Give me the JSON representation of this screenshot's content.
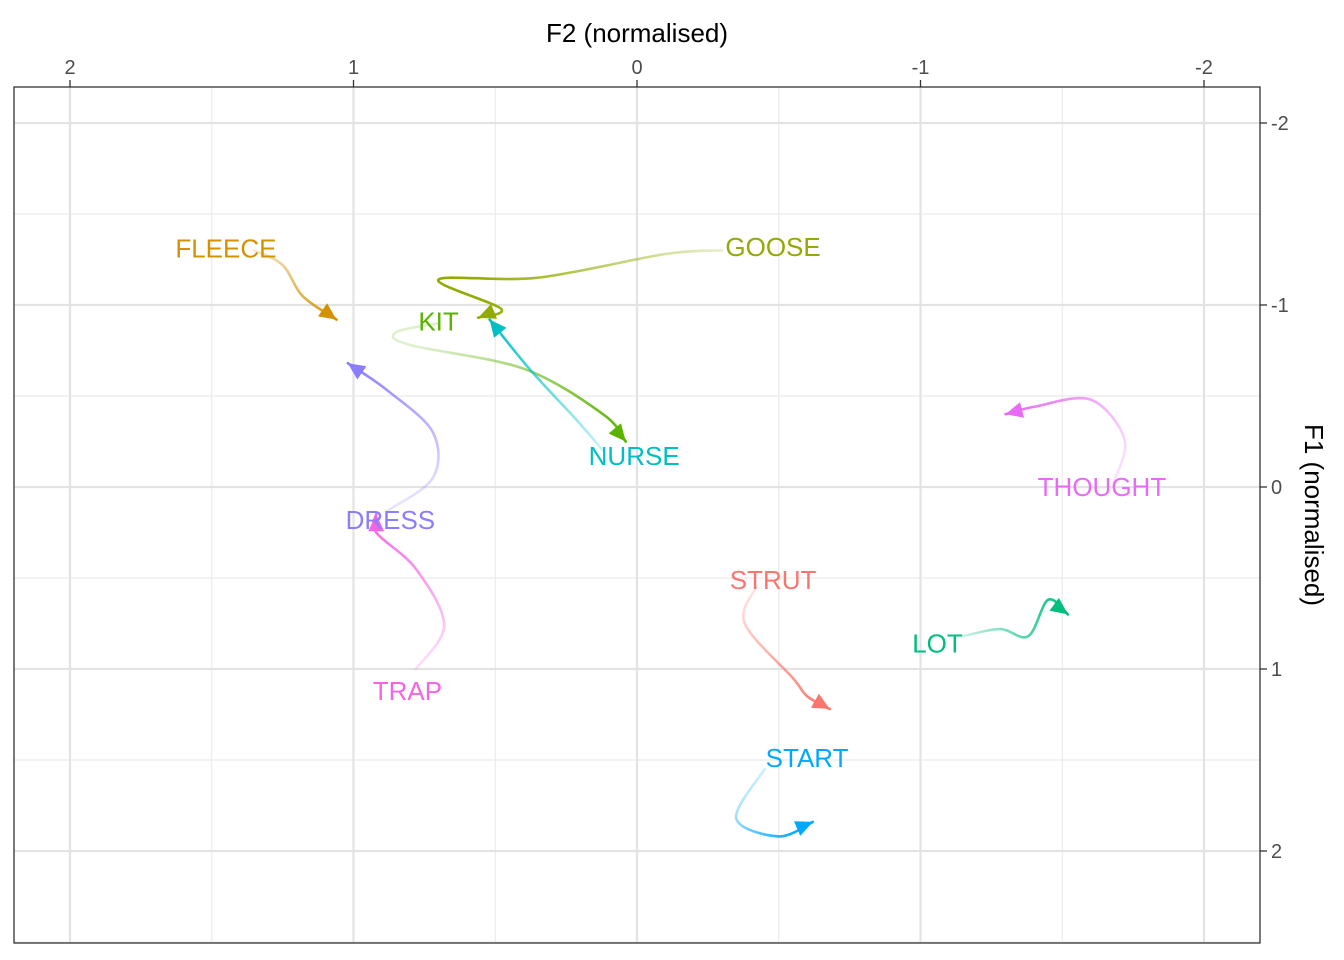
{
  "chart_data": {
    "type": "line",
    "xlabel": "F2 (normalised)",
    "ylabel": "F1 (normalised)",
    "x_axis_position": "top",
    "y_axis_position": "right",
    "x_reversed": true,
    "y_reversed": true,
    "xlim": [
      2.2,
      -2.2
    ],
    "ylim": [
      -2.2,
      2.5
    ],
    "x_ticks": [
      2,
      1,
      0,
      -1,
      -2
    ],
    "x_tick_labels": [
      "2",
      "1",
      "0",
      "-1",
      "-2"
    ],
    "y_ticks": [
      -2,
      -1,
      0,
      1,
      2
    ],
    "y_tick_labels": [
      "-2",
      "-1",
      "0",
      "1",
      "2"
    ],
    "grid": true,
    "legend": "none",
    "series": [
      {
        "name": "FLEECE",
        "color": "#D39200",
        "label_at": [
          1.45,
          -1.31
        ],
        "points": [
          [
            1.35,
            -1.3
          ],
          [
            1.25,
            -1.22
          ],
          [
            1.18,
            -1.05
          ],
          [
            1.06,
            -0.92
          ]
        ]
      },
      {
        "name": "GOOSE",
        "color": "#93AA00",
        "label_at": [
          -0.48,
          -1.32
        ],
        "points": [
          [
            -0.3,
            -1.3
          ],
          [
            -0.1,
            -1.28
          ],
          [
            0.35,
            -1.15
          ],
          [
            0.7,
            -1.14
          ],
          [
            0.48,
            -0.98
          ],
          [
            0.56,
            -0.93
          ]
        ]
      },
      {
        "name": "KIT",
        "color": "#5BB300",
        "label_at": [
          0.7,
          -0.91
        ],
        "points": [
          [
            0.7,
            -0.9
          ],
          [
            0.85,
            -0.85
          ],
          [
            0.8,
            -0.78
          ],
          [
            0.4,
            -0.65
          ],
          [
            0.12,
            -0.4
          ],
          [
            0.04,
            -0.25
          ]
        ]
      },
      {
        "name": "NURSE",
        "color": "#00BFC4",
        "label_at": [
          0.01,
          -0.17
        ],
        "points": [
          [
            0.12,
            -0.2
          ],
          [
            0.22,
            -0.38
          ],
          [
            0.38,
            -0.65
          ],
          [
            0.52,
            -0.92
          ]
        ]
      },
      {
        "name": "DRESS",
        "color": "#8A7EFF",
        "label_at": [
          0.87,
          0.18
        ],
        "points": [
          [
            0.88,
            0.13
          ],
          [
            0.72,
            -0.05
          ],
          [
            0.72,
            -0.3
          ],
          [
            0.88,
            -0.53
          ],
          [
            1.02,
            -0.68
          ]
        ]
      },
      {
        "name": "TRAP",
        "color": "#F564E3",
        "label_at": [
          0.81,
          1.12
        ],
        "points": [
          [
            0.78,
            1.0
          ],
          [
            0.68,
            0.76
          ],
          [
            0.78,
            0.45
          ],
          [
            0.92,
            0.25
          ],
          [
            0.92,
            0.15
          ]
        ]
      },
      {
        "name": "STRUT",
        "color": "#F8766D",
        "label_at": [
          -0.48,
          0.51
        ],
        "points": [
          [
            -0.42,
            0.55
          ],
          [
            -0.38,
            0.75
          ],
          [
            -0.55,
            1.05
          ],
          [
            -0.6,
            1.15
          ],
          [
            -0.68,
            1.22
          ]
        ]
      },
      {
        "name": "START",
        "color": "#00A9FF",
        "label_at": [
          -0.6,
          1.49
        ],
        "points": [
          [
            -0.45,
            1.55
          ],
          [
            -0.35,
            1.82
          ],
          [
            -0.5,
            1.92
          ],
          [
            -0.62,
            1.84
          ]
        ]
      },
      {
        "name": "LOT",
        "color": "#00BF7D",
        "label_at": [
          -1.06,
          0.86
        ],
        "points": [
          [
            -1.15,
            0.82
          ],
          [
            -1.28,
            0.78
          ],
          [
            -1.38,
            0.82
          ],
          [
            -1.45,
            0.62
          ],
          [
            -1.52,
            0.7
          ]
        ]
      },
      {
        "name": "THOUGHT",
        "color": "#E76BF3",
        "label_at": [
          -1.64,
          0.0
        ],
        "points": [
          [
            -1.68,
            -0.02
          ],
          [
            -1.72,
            -0.26
          ],
          [
            -1.6,
            -0.48
          ],
          [
            -1.4,
            -0.44
          ],
          [
            -1.3,
            -0.4
          ]
        ]
      }
    ]
  }
}
